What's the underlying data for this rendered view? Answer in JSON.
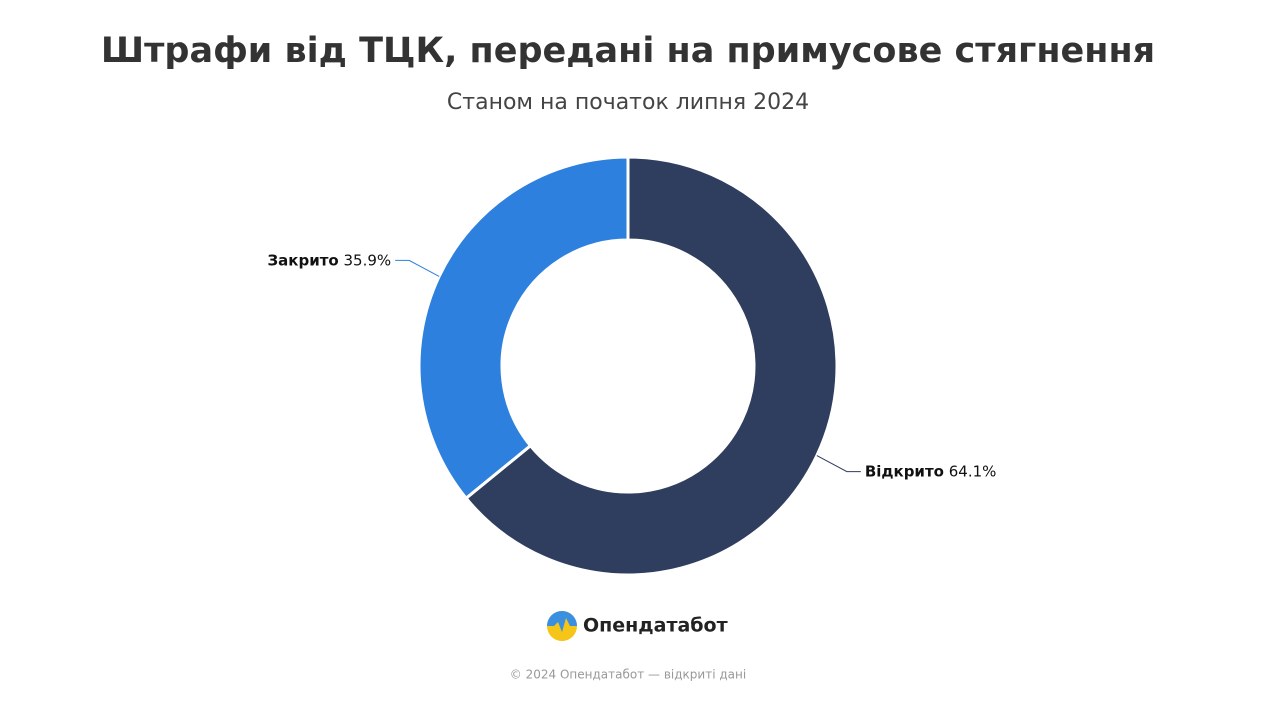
{
  "chart_data": {
    "type": "pie",
    "title": "Штрафи від ТЦК, передані на примусове стягнення",
    "subtitle": "Станом на початок липня 2024",
    "categories": [
      "Відкрито",
      "Закрито"
    ],
    "values": [
      64.1,
      35.9
    ],
    "value_labels": [
      "64.1%",
      "35.9%"
    ],
    "colors": [
      "#2f3d5e",
      "#2d80de"
    ]
  },
  "brand": "Опендатабот",
  "footer": "© 2024 Опендатабот — відкриті дані"
}
